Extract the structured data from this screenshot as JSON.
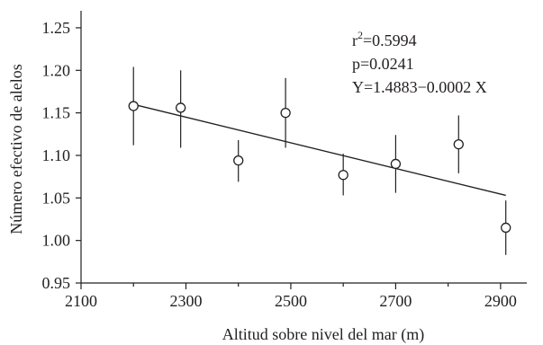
{
  "chart_data": {
    "type": "scatter",
    "xlabel": "Altitud sobre nivel del mar (m)",
    "ylabel": "Número efectivo de alelos",
    "xlim": [
      2100,
      2950
    ],
    "ylim": [
      0.95,
      1.27
    ],
    "x_ticks": [
      2100,
      2300,
      2500,
      2700,
      2900
    ],
    "y_ticks": [
      0.95,
      1.0,
      1.05,
      1.1,
      1.15,
      1.2,
      1.25
    ],
    "grid": false,
    "points": [
      {
        "x": 2200,
        "y": 1.158,
        "err_low": 1.112,
        "err_high": 1.204
      },
      {
        "x": 2290,
        "y": 1.156,
        "err_low": 1.109,
        "err_high": 1.2
      },
      {
        "x": 2400,
        "y": 1.094,
        "err_low": 1.069,
        "err_high": 1.118
      },
      {
        "x": 2490,
        "y": 1.15,
        "err_low": 1.109,
        "err_high": 1.191
      },
      {
        "x": 2600,
        "y": 1.077,
        "err_low": 1.053,
        "err_high": 1.102
      },
      {
        "x": 2700,
        "y": 1.09,
        "err_low": 1.056,
        "err_high": 1.124
      },
      {
        "x": 2820,
        "y": 1.113,
        "err_low": 1.079,
        "err_high": 1.147
      },
      {
        "x": 2910,
        "y": 1.015,
        "err_low": 0.983,
        "err_high": 1.047
      }
    ],
    "regression": {
      "x": [
        2200,
        2910
      ],
      "y": [
        1.16,
        1.053
      ]
    },
    "annotations": {
      "r2_base": "r",
      "r2_exp": "2",
      "r2_value": "=0.5994",
      "p": "p=0.0241",
      "equation": "Y=1.4883−0.0002 X"
    },
    "colors": {
      "ink": "#231f20",
      "background": "#ffffff"
    }
  }
}
